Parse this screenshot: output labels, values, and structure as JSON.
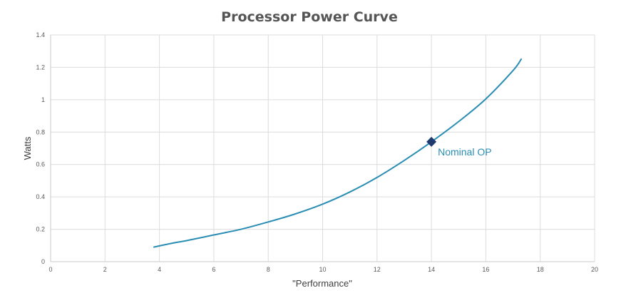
{
  "chart_data": {
    "type": "line",
    "title": "Processor Power Curve",
    "xlabel": "\"Performance\"",
    "ylabel": "Watts",
    "xlim": [
      0,
      20
    ],
    "ylim": [
      0,
      1.4
    ],
    "x_ticks": [
      "0",
      "2",
      "4",
      "6",
      "8",
      "10",
      "12",
      "14",
      "16",
      "18",
      "20"
    ],
    "y_ticks": [
      "0",
      "0.2",
      "0.4",
      "0.6",
      "0.8",
      "1",
      "1.2",
      "1.4"
    ],
    "grid": true,
    "series": [
      {
        "color": "#2a8db4",
        "points": [
          [
            3.8,
            0.09
          ],
          [
            4.5,
            0.115
          ],
          [
            5.0,
            0.13
          ],
          [
            6.0,
            0.165
          ],
          [
            7.0,
            0.2
          ],
          [
            8.0,
            0.245
          ],
          [
            9.0,
            0.295
          ],
          [
            10.0,
            0.355
          ],
          [
            11.0,
            0.43
          ],
          [
            12.0,
            0.52
          ],
          [
            13.0,
            0.625
          ],
          [
            14.0,
            0.74
          ],
          [
            15.0,
            0.865
          ],
          [
            16.0,
            1.005
          ],
          [
            17.0,
            1.18
          ],
          [
            17.3,
            1.25
          ]
        ]
      }
    ],
    "annotations": [
      {
        "text": "Nominal OP",
        "x": 14.0,
        "y": 0.74,
        "marker": "diamond",
        "marker_color": "#1f3a6e",
        "text_color": "#2a8db4"
      }
    ]
  }
}
